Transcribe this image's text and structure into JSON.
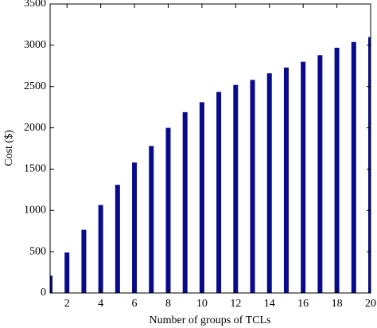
{
  "chart_data": {
    "type": "bar",
    "xlabel": "Number of groups of TCLs",
    "ylabel": "Cost ($)",
    "x": [
      1,
      2,
      3,
      4,
      5,
      6,
      7,
      8,
      9,
      10,
      11,
      12,
      13,
      14,
      15,
      16,
      17,
      18,
      19,
      20
    ],
    "values": [
      210,
      490,
      765,
      1065,
      1310,
      1580,
      1780,
      2000,
      2190,
      2310,
      2435,
      2520,
      2580,
      2660,
      2730,
      2800,
      2880,
      2970,
      3040,
      3100
    ],
    "color": "#0a0a8c",
    "xlim": [
      1,
      20
    ],
    "xticks": [
      2,
      4,
      6,
      8,
      10,
      12,
      14,
      16,
      18,
      20
    ],
    "ylim": [
      0,
      3500
    ],
    "yticks": [
      0,
      500,
      1000,
      1500,
      2000,
      2500,
      3000,
      3500
    ]
  }
}
